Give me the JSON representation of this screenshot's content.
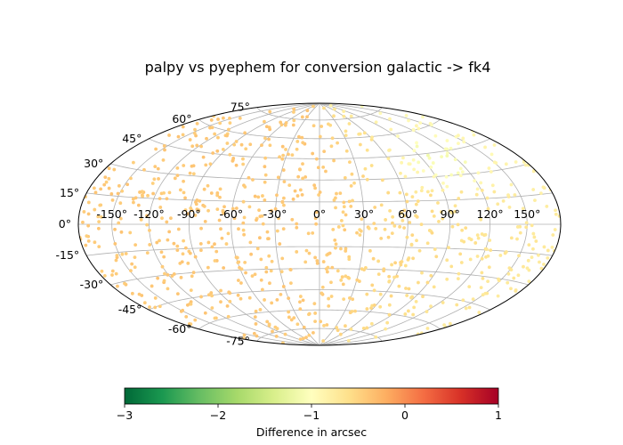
{
  "chart_data": {
    "type": "scatter",
    "projection": "aitoff-hammer",
    "title": "palpy vs pyephem for conversion galactic -> fk4",
    "lon_ticks": [
      -150,
      -120,
      -90,
      -60,
      -30,
      0,
      30,
      60,
      90,
      120,
      150
    ],
    "lon_tick_labels": [
      "-150°",
      "-120°",
      "-90°",
      "-60°",
      "-30°",
      "0°",
      "30°",
      "60°",
      "90°",
      "120°",
      "150°"
    ],
    "lat_ticks": [
      -75,
      -60,
      -45,
      -30,
      -15,
      0,
      15,
      30,
      45,
      60,
      75
    ],
    "lat_tick_labels": [
      "-75°",
      "-60°",
      "-45°",
      "-30°",
      "-15°",
      "0°",
      "15°",
      "30°",
      "45°",
      "60°",
      "75°"
    ],
    "grid": true,
    "colorbar": {
      "label": "Difference in arcsec",
      "orientation": "horizontal",
      "colormap": "RdYlGn_r",
      "range": [
        -3,
        1
      ],
      "ticks": [
        -3,
        -2,
        -1,
        0,
        1
      ],
      "tick_labels": [
        "−3",
        "−2",
        "−1",
        "0",
        "1"
      ],
      "colors": [
        "#006837",
        "#1a9850",
        "#66bd63",
        "#a6d96a",
        "#d9ef8b",
        "#ffffbf",
        "#fee08b",
        "#fdae61",
        "#f46d43",
        "#d73027",
        "#a50026"
      ]
    },
    "point_count_approx": 900,
    "value_trend": {
      "description": "values near -0.4 in left half, trending toward -1 to -1.5 at high positive longitude and northern latitudes",
      "min": -1.7,
      "max": -0.2
    }
  }
}
